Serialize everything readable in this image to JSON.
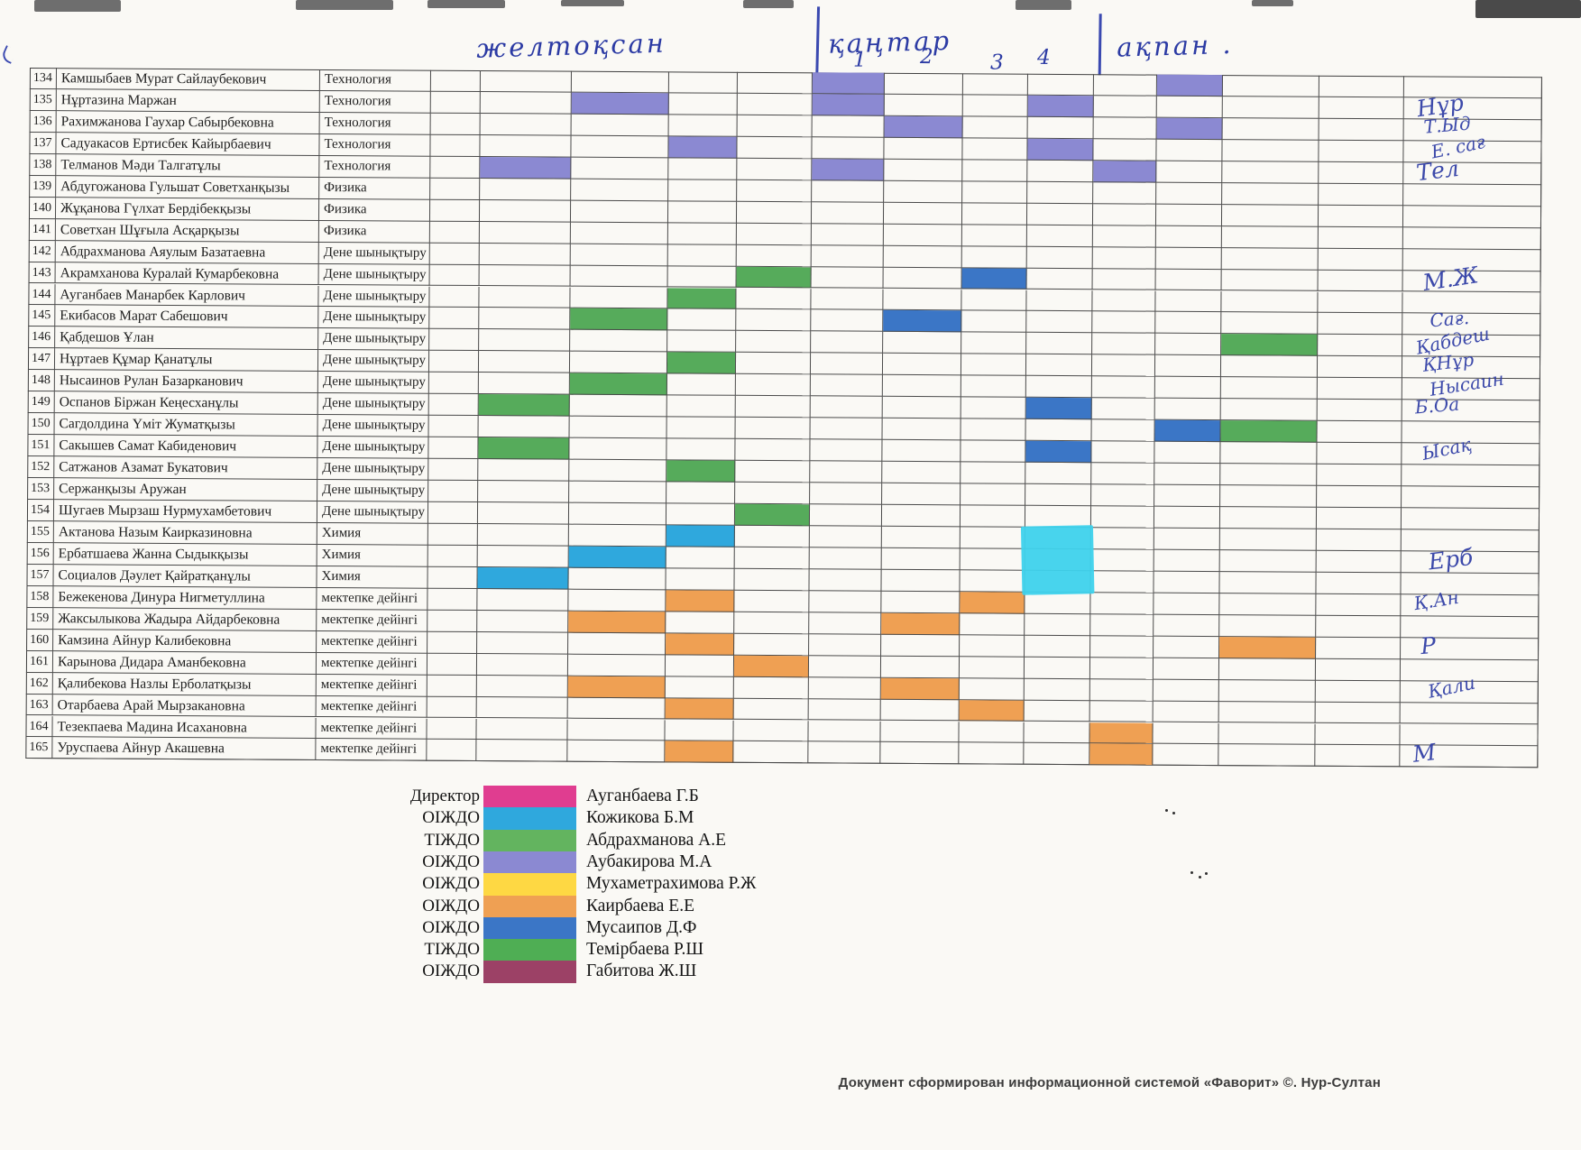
{
  "months": {
    "december": {
      "label": "желтоқсан"
    },
    "january": {
      "label": "қаңтар",
      "weeks": [
        "1",
        "2",
        "3",
        "4"
      ]
    },
    "february": {
      "label": "ақпан ."
    }
  },
  "cell_colors": {
    "purple": "#8b89d2",
    "green": "#56ab5b",
    "blue": "#3b76c6",
    "cyan": "#2fa8dd",
    "orange": "#efa053",
    "patch": "#3ed2ec"
  },
  "rows": [
    {
      "num": 134,
      "name": "Камшыбаев Мурат Сайлаубекович",
      "subject": "Технология",
      "cells": [
        {
          "col": 6,
          "color": "purple"
        },
        {
          "col": 11,
          "color": "purple"
        }
      ]
    },
    {
      "num": 135,
      "name": "Нұртазина Маржан",
      "subject": "Технология",
      "cells": [
        {
          "col": 3,
          "color": "purple"
        },
        {
          "col": 6,
          "color": "purple"
        },
        {
          "col": 9,
          "color": "purple"
        }
      ]
    },
    {
      "num": 136,
      "name": "Рахимжанова Гаухар Сабырбековна",
      "subject": "Технология",
      "cells": [
        {
          "col": 7,
          "color": "purple"
        },
        {
          "col": 11,
          "color": "purple"
        }
      ]
    },
    {
      "num": 137,
      "name": "Садуакасов Ертисбек Кайырбаевич",
      "subject": "Технология",
      "cells": [
        {
          "col": 4,
          "color": "purple"
        },
        {
          "col": 9,
          "color": "purple"
        }
      ]
    },
    {
      "num": 138,
      "name": "Телманов Мәди Талгатұлы",
      "subject": "Технология",
      "cells": [
        {
          "col": 2,
          "color": "purple"
        },
        {
          "col": 6,
          "color": "purple"
        },
        {
          "col": 10,
          "color": "purple"
        }
      ]
    },
    {
      "num": 139,
      "name": "Абдугожанова Гульшат Советханқызы",
      "subject": "Физика",
      "cells": []
    },
    {
      "num": 140,
      "name": "Жұқанова Гүлхат Бердібекқызы",
      "subject": "Физика",
      "cells": []
    },
    {
      "num": 141,
      "name": "Советхан Шұғыла Асқарқызы",
      "subject": "Физика",
      "cells": []
    },
    {
      "num": 142,
      "name": "Абдрахманова Аяулым Базатаевна",
      "subject": "Дене шынықтыру",
      "cells": []
    },
    {
      "num": 143,
      "name": "Акрамханова Куралай Кумарбековна",
      "subject": "Дене шынықтыру",
      "cells": [
        {
          "col": 5,
          "color": "green"
        },
        {
          "col": 8,
          "color": "blue"
        }
      ]
    },
    {
      "num": 144,
      "name": "Ауганбаев Манарбек Карлович",
      "subject": "Дене шынықтыру",
      "cells": [
        {
          "col": 4,
          "color": "green"
        }
      ]
    },
    {
      "num": 145,
      "name": "Екибасов Марат Сабешович",
      "subject": "Дене шынықтыру",
      "cells": [
        {
          "col": 3,
          "color": "green"
        },
        {
          "col": 7,
          "color": "blue"
        }
      ]
    },
    {
      "num": 146,
      "name": "Қабдешов Ұлан",
      "subject": "Дене шынықтыру",
      "cells": [
        {
          "col": 12,
          "color": "green"
        }
      ]
    },
    {
      "num": 147,
      "name": "Нұртаев Құмар Қанатұлы",
      "subject": "Дене шынықтыру",
      "cells": [
        {
          "col": 4,
          "color": "green"
        }
      ]
    },
    {
      "num": 148,
      "name": "Нысаинов Рулан Базарканович",
      "subject": "Дене шынықтыру",
      "cells": [
        {
          "col": 3,
          "color": "green"
        }
      ]
    },
    {
      "num": 149,
      "name": "Оспанов Біржан Кеңесханұлы",
      "subject": "Дене шынықтыру",
      "cells": [
        {
          "col": 2,
          "color": "green"
        },
        {
          "col": 9,
          "color": "blue"
        }
      ]
    },
    {
      "num": 150,
      "name": "Сагдолдина Үміт Жуматқызы",
      "subject": "Дене шынықтыру",
      "cells": [
        {
          "col": 11,
          "color": "blue"
        },
        {
          "col": 12,
          "color": "green"
        }
      ]
    },
    {
      "num": 151,
      "name": "Сакышев Самат Кабиденович",
      "subject": "Дене шынықтыру",
      "cells": [
        {
          "col": 2,
          "color": "green"
        },
        {
          "col": 9,
          "color": "blue"
        }
      ]
    },
    {
      "num": 152,
      "name": "Сатжанов Азамат Букатович",
      "subject": "Дене шынықтыру",
      "cells": [
        {
          "col": 4,
          "color": "green"
        }
      ]
    },
    {
      "num": 153,
      "name": "Сержанқызы Аружан",
      "subject": "Дене шынықтыру",
      "cells": []
    },
    {
      "num": 154,
      "name": "Шугаев Мырзаш Нурмухамбетович",
      "subject": "Дене шынықтыру",
      "cells": [
        {
          "col": 5,
          "color": "green"
        }
      ]
    },
    {
      "num": 155,
      "name": "Актанова Назым Каирказиновна",
      "subject": "Химия",
      "cells": [
        {
          "col": 4,
          "color": "cyan"
        }
      ]
    },
    {
      "num": 156,
      "name": "Ербатшаева Жанна Сыдыкқызы",
      "subject": "Химия",
      "cells": [
        {
          "col": 3,
          "color": "cyan"
        }
      ]
    },
    {
      "num": 157,
      "name": "Социалов Дәулет Қайратқанұлы",
      "subject": "Химия",
      "cells": [
        {
          "col": 2,
          "color": "cyan"
        }
      ]
    },
    {
      "num": 158,
      "name": "Бежекенова Динура Нигметуллина",
      "subject": "мектепке дейінгі",
      "cells": [
        {
          "col": 4,
          "color": "orange"
        },
        {
          "col": 8,
          "color": "orange"
        }
      ]
    },
    {
      "num": 159,
      "name": "Жаксылыкова Жадыра Айдарбековна",
      "subject": "мектепке дейінгі",
      "cells": [
        {
          "col": 3,
          "color": "orange"
        },
        {
          "col": 7,
          "color": "orange"
        }
      ]
    },
    {
      "num": 160,
      "name": "Камзина Айнур Калибековна",
      "subject": "мектепке дейінгі",
      "cells": [
        {
          "col": 4,
          "color": "orange"
        },
        {
          "col": 12,
          "color": "orange"
        }
      ]
    },
    {
      "num": 161,
      "name": "Карынова Дидара Аманбековна",
      "subject": "мектепке дейінгі",
      "cells": [
        {
          "col": 5,
          "color": "orange"
        }
      ]
    },
    {
      "num": 162,
      "name": "Қалибекова Назлы Ерболатқызы",
      "subject": "мектепке дейінгі",
      "cells": [
        {
          "col": 3,
          "color": "orange"
        },
        {
          "col": 7,
          "color": "orange"
        }
      ]
    },
    {
      "num": 163,
      "name": "Отарбаева Арай Мырзакановна",
      "subject": "мектепке дейінгі",
      "cells": [
        {
          "col": 4,
          "color": "orange"
        },
        {
          "col": 8,
          "color": "orange"
        }
      ]
    },
    {
      "num": 164,
      "name": "Тезекпаева Мадина Исахановна",
      "subject": "мектепке дейінгі",
      "cells": [
        {
          "col": 10,
          "color": "orange"
        }
      ]
    },
    {
      "num": 165,
      "name": "Уруспаева Айнур Акашевна",
      "subject": "мектепке дейінгі",
      "cells": [
        {
          "col": 4,
          "color": "orange"
        },
        {
          "col": 10,
          "color": "orange"
        }
      ]
    }
  ],
  "patch": {
    "col": 9,
    "row_start": 155,
    "row_end": 157,
    "color": "patch"
  },
  "signatures": [
    {
      "row": 135,
      "text": "Нұр"
    },
    {
      "row": 136,
      "text": "Т.Ыд"
    },
    {
      "row": 137,
      "text": "Е. сағ"
    },
    {
      "row": 138,
      "text": "Тел"
    },
    {
      "row": 143,
      "text": "М.Ж"
    },
    {
      "row": 145,
      "text": "Сағ."
    },
    {
      "row": 146,
      "text": "Қабдеш"
    },
    {
      "row": 147,
      "text": "ҚНұр"
    },
    {
      "row": 148,
      "text": "Нысаин"
    },
    {
      "row": 149,
      "text": "Б.Оа"
    },
    {
      "row": 151,
      "text": "Ысақ"
    },
    {
      "row": 156,
      "text": "Ерб"
    },
    {
      "row": 158,
      "text": "Қ.Ан"
    },
    {
      "row": 160,
      "text": "Р"
    },
    {
      "row": 162,
      "text": "Қали"
    },
    {
      "row": 165,
      "text": "М"
    }
  ],
  "legend": {
    "rows": [
      {
        "role": "Директор",
        "color": "#e03d90",
        "name": "Ауганбаева Г.Б"
      },
      {
        "role": "ОІЖДО",
        "color": "#2fa8dd",
        "name": "Кожикова Б.М"
      },
      {
        "role": "ТІЖДО",
        "color": "#63b45f",
        "name": "Абдрахманова А.Е"
      },
      {
        "role": "ОІЖДО",
        "color": "#8b89d2",
        "name": "Аубакирова М.А"
      },
      {
        "role": "ОІЖДО",
        "color": "#fed843",
        "name": "Мухаметрахимова Р.Ж"
      },
      {
        "role": "ОІЖДО",
        "color": "#efa053",
        "name": "Каирбаева Е.Е"
      },
      {
        "role": "ОІЖДО",
        "color": "#3b76c6",
        "name": "Мусаипов Д.Ф"
      },
      {
        "role": "ТІЖДО",
        "color": "#4fae54",
        "name": "Темірбаева Р.Ш"
      },
      {
        "role": "ОІЖДО",
        "color": "#9c4166",
        "name": "Габитова Ж.Ш"
      }
    ]
  },
  "page": {
    "footer": "Документ сформирован информационной системой «Фаворит» ©. Нур-Султан"
  }
}
